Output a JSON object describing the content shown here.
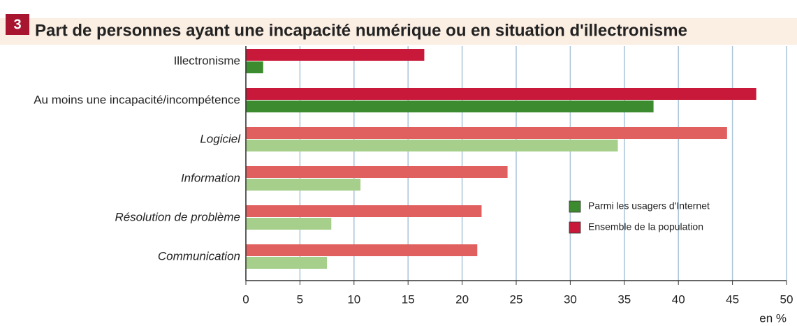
{
  "chart_data": {
    "type": "hbar",
    "badge": "3",
    "title": "Part de personnes ayant une incapacité numérique ou en situation d'illectronisme",
    "categories": [
      "Illectronisme",
      "Au moins une incapacité/incompétence",
      "Logiciel",
      "Information",
      "Résolution de problème",
      "Communication"
    ],
    "category_style": [
      "normal",
      "normal",
      "italic",
      "italic",
      "italic",
      "italic"
    ],
    "series": [
      {
        "name": "Parmi les usagers d'Internet",
        "color": "#3d8b2f",
        "colors": [
          "#3d8b2f",
          "#3d8b2f",
          "#a6cf8c",
          "#a6cf8c",
          "#a6cf8c",
          "#a6cf8c"
        ],
        "values": [
          1.6,
          37.7,
          34.4,
          10.6,
          7.9,
          7.5
        ]
      },
      {
        "name": "Ensemble de la population",
        "color": "#c8193a",
        "colors": [
          "#c8193a",
          "#c8193a",
          "#e0605f",
          "#e0605f",
          "#e0605f",
          "#e0605f"
        ],
        "values": [
          16.5,
          47.2,
          44.5,
          24.2,
          21.8,
          21.4
        ]
      }
    ],
    "xlabel": "en %",
    "xlim": [
      0,
      50
    ],
    "xticks": [
      0,
      5,
      10,
      15,
      20,
      25,
      30,
      35,
      40,
      45,
      50
    ],
    "grid": true
  }
}
